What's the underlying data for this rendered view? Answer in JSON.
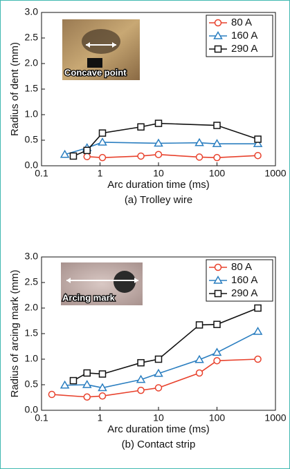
{
  "chart_data": [
    {
      "type": "line",
      "xscale": "log",
      "ylabel": "Radius of dent (mm)",
      "xlabel": "Arc duration time (ms)",
      "caption": "(a) Trolley wire",
      "annotation": "Concave point",
      "xlim": [
        0.1,
        1000
      ],
      "xticks": [
        0.1,
        1,
        10,
        100,
        1000
      ],
      "ylim": [
        0,
        3
      ],
      "yticks": [
        {
          "value": 0,
          "label": "0.0"
        },
        {
          "value": 0.5,
          "label": "0.5"
        },
        {
          "value": 1,
          "label": "1.0"
        },
        {
          "value": 1.5,
          "label": "1.5"
        },
        {
          "value": 2,
          "label": "2.0"
        },
        {
          "value": 2.5,
          "label": "2.5"
        },
        {
          "value": 3,
          "label": "3.0"
        }
      ],
      "legend": "upper right",
      "series": [
        {
          "name": "80 A",
          "color": "#e8412c",
          "marker": "o",
          "x": [
            0.6,
            1.1,
            5,
            10,
            50,
            100,
            500
          ],
          "values": [
            0.18,
            0.16,
            0.19,
            0.22,
            0.17,
            0.16,
            0.2
          ]
        },
        {
          "name": "160 A",
          "color": "#2a7ec0",
          "marker": "^",
          "x": [
            0.25,
            0.6,
            1.1,
            10,
            50,
            100,
            500
          ],
          "values": [
            0.22,
            0.35,
            0.46,
            0.44,
            0.45,
            0.43,
            0.43
          ]
        },
        {
          "name": "290 A",
          "color": "#111111",
          "marker": "s",
          "x": [
            0.35,
            0.6,
            1.1,
            5,
            10,
            100,
            500
          ],
          "values": [
            0.19,
            0.3,
            0.64,
            0.76,
            0.83,
            0.79,
            0.52
          ]
        }
      ]
    },
    {
      "type": "line",
      "xscale": "log",
      "ylabel": "Radius of arcing mark (mm)",
      "xlabel": "Arc duration time (ms)",
      "caption": "(b) Contact strip",
      "annotation": "Arcing mark",
      "xlim": [
        0.1,
        1000
      ],
      "xticks": [
        0.1,
        1,
        10,
        100,
        1000
      ],
      "ylim": [
        0,
        3
      ],
      "yticks": [
        {
          "value": 0,
          "label": "0.0"
        },
        {
          "value": 0.5,
          "label": "0.5"
        },
        {
          "value": 1,
          "label": "1.0"
        },
        {
          "value": 1.5,
          "label": "1.5"
        },
        {
          "value": 2,
          "label": "2.0"
        },
        {
          "value": 2.5,
          "label": "2.5"
        },
        {
          "value": 3,
          "label": "3.0"
        }
      ],
      "legend": "upper right",
      "series": [
        {
          "name": "80 A",
          "color": "#e8412c",
          "marker": "o",
          "x": [
            0.15,
            0.6,
            1.1,
            5,
            10,
            50,
            100,
            500
          ],
          "values": [
            0.31,
            0.26,
            0.28,
            0.39,
            0.44,
            0.73,
            0.97,
            1.0
          ]
        },
        {
          "name": "160 A",
          "color": "#2a7ec0",
          "marker": "^",
          "x": [
            0.25,
            0.6,
            1.1,
            5,
            10,
            50,
            100,
            500
          ],
          "values": [
            0.49,
            0.5,
            0.44,
            0.6,
            0.72,
            0.99,
            1.13,
            1.54
          ]
        },
        {
          "name": "290 A",
          "color": "#111111",
          "marker": "s",
          "x": [
            0.35,
            0.6,
            1.1,
            5,
            10,
            50,
            100,
            500
          ],
          "values": [
            0.58,
            0.73,
            0.71,
            0.93,
            1.0,
            1.67,
            1.68,
            2.0
          ]
        }
      ]
    }
  ]
}
